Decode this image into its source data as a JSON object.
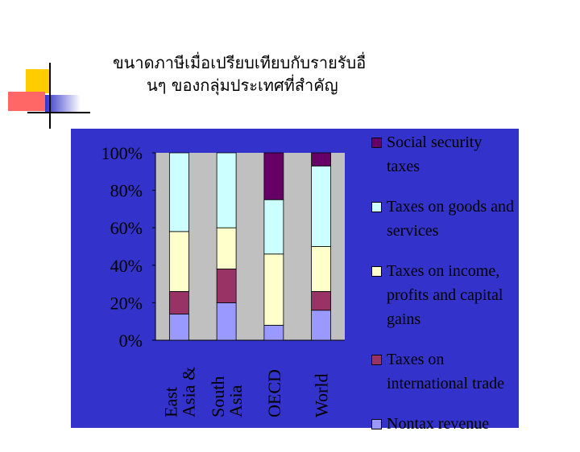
{
  "chart_data": {
    "type": "stacked_bar",
    "title": [
      "ขนาดภาษีเมื่อเปรียบเทียบกับรายรับอื่",
      "นๆ ของกลุ่มประเทศที่สำคัญ"
    ],
    "categories": [
      "East Asia &",
      "South Asia",
      "OECD",
      "World"
    ],
    "series": [
      {
        "name": "Nontax revenue",
        "color": "#9999ff",
        "values": [
          14,
          20,
          8,
          16
        ]
      },
      {
        "name": "Taxes on international trade",
        "color": "#993366",
        "values": [
          12,
          18,
          0,
          10
        ]
      },
      {
        "name": "Taxes on income, profits and capital gains",
        "color": "#ffffcc",
        "values": [
          32,
          22,
          38,
          24
        ]
      },
      {
        "name": "Taxes on goods and services",
        "color": "#ccffff",
        "values": [
          42,
          40,
          29,
          43
        ]
      },
      {
        "name": "Social security taxes",
        "color": "#660066",
        "values": [
          0,
          0,
          25,
          7
        ]
      }
    ],
    "ylim": [
      0,
      100
    ],
    "yticks": [
      {
        "value": 0,
        "label": "0%"
      },
      {
        "value": 20,
        "label": "20%"
      },
      {
        "value": 40,
        "label": "40%"
      },
      {
        "value": 60,
        "label": "60%"
      },
      {
        "value": 80,
        "label": "80%"
      },
      {
        "value": 100,
        "label": "100%"
      }
    ],
    "grid": false,
    "legend": "right"
  }
}
